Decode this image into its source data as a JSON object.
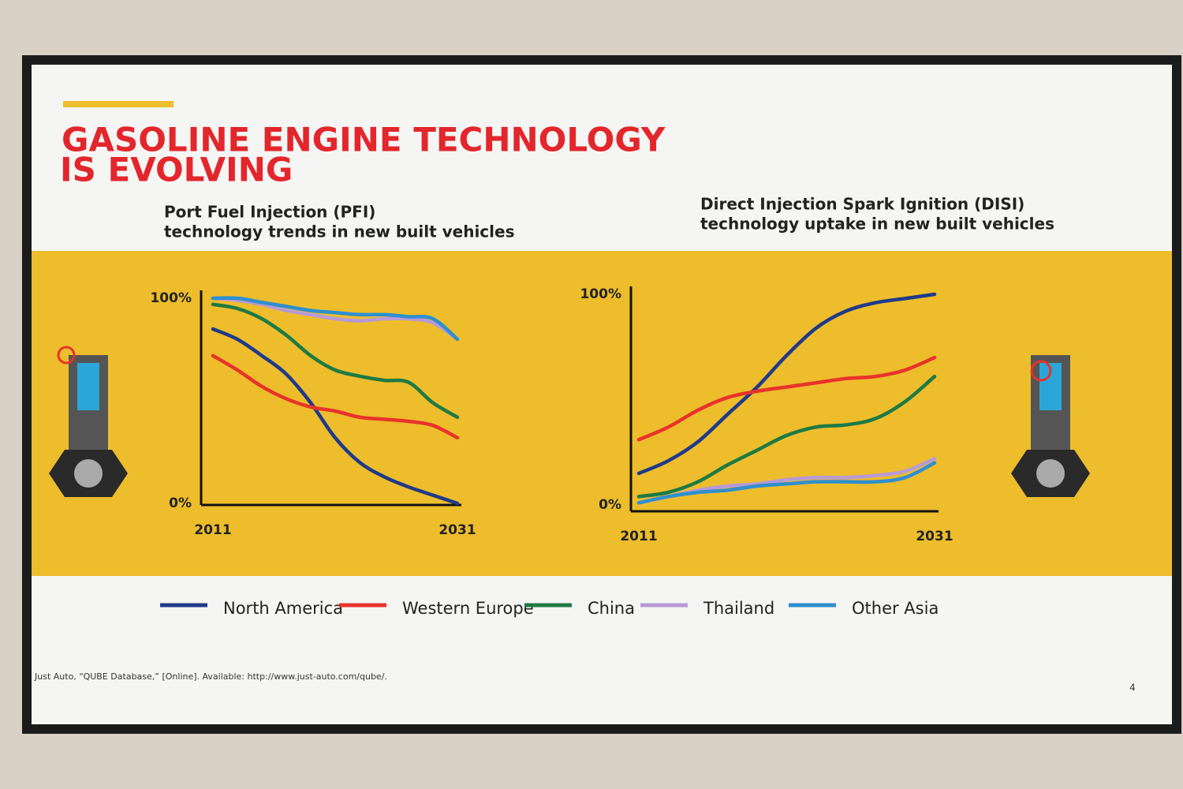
{
  "slide": {
    "title": [
      "GASOLINE ENGINE TECHNOLOGY",
      "IS EVOLVING"
    ],
    "source": "Just Auto, “QUBE Database,” [Online]. Available: http://www.just-auto.com/qube/.",
    "page": "4"
  },
  "chart_data": [
    {
      "type": "line",
      "title": [
        "Port Fuel Injection (PFI)",
        "technology trends in new built vehicles"
      ],
      "x": [
        2011,
        2013,
        2015,
        2017,
        2019,
        2021,
        2023,
        2025,
        2027,
        2029,
        2031
      ],
      "xlim": [
        2011,
        2031
      ],
      "xticks": [
        2011,
        2031
      ],
      "ylim": [
        0,
        100
      ],
      "yticks": [
        {
          "value": 0,
          "label": "0%"
        },
        {
          "value": 100,
          "label": "100%"
        }
      ],
      "series": [
        {
          "name": "North America",
          "color": "#1f3a8a",
          "values": [
            85,
            80,
            72,
            63,
            49,
            32,
            20,
            13,
            8,
            4,
            0
          ]
        },
        {
          "name": "Western Europe",
          "color": "#e8332a",
          "values": [
            72,
            65,
            57,
            51,
            47,
            45,
            42,
            41,
            40,
            38,
            32
          ]
        },
        {
          "name": "China",
          "color": "#1e7a45",
          "values": [
            97,
            95,
            90,
            82,
            72,
            65,
            62,
            60,
            59,
            49,
            42
          ]
        },
        {
          "name": "Thailand",
          "color": "#b79ad6",
          "values": [
            100,
            99,
            97,
            94,
            92,
            90,
            89,
            90,
            90,
            88,
            80
          ]
        },
        {
          "name": "Other Asia",
          "color": "#2e8fd0",
          "values": [
            100,
            100,
            98,
            96,
            94,
            93,
            92,
            92,
            91,
            90,
            80
          ]
        }
      ]
    },
    {
      "type": "line",
      "title": [
        "Direct Injection Spark Ignition (DISI)",
        "technology uptake in new built vehicles"
      ],
      "x": [
        2011,
        2013,
        2015,
        2017,
        2019,
        2021,
        2023,
        2025,
        2027,
        2029,
        2031
      ],
      "xlim": [
        2011,
        2031
      ],
      "xticks": [
        2011,
        2031
      ],
      "ylim": [
        0,
        100
      ],
      "yticks": [
        {
          "value": 0,
          "label": "0%"
        },
        {
          "value": 100,
          "label": "100%"
        }
      ],
      "series": [
        {
          "color": "#1f3a8a",
          "values": [
            15,
            21,
            30,
            43,
            56,
            71,
            84,
            92,
            96,
            98,
            100
          ]
        },
        {
          "color": "#e8332a",
          "values": [
            31,
            37,
            45,
            51,
            54,
            56,
            58,
            60,
            61,
            64,
            70
          ]
        },
        {
          "color": "#1e7a45",
          "values": [
            4,
            6,
            11,
            19,
            26,
            33,
            37,
            38,
            41,
            49,
            61
          ]
        },
        {
          "color": "#b79ad6",
          "values": [
            1,
            4,
            7,
            9,
            10,
            12,
            13,
            13,
            14,
            16,
            22
          ]
        },
        {
          "color": "#2e8fd0",
          "values": [
            1,
            4,
            6,
            7,
            9,
            10,
            11,
            11,
            11,
            13,
            20
          ]
        }
      ]
    }
  ]
}
